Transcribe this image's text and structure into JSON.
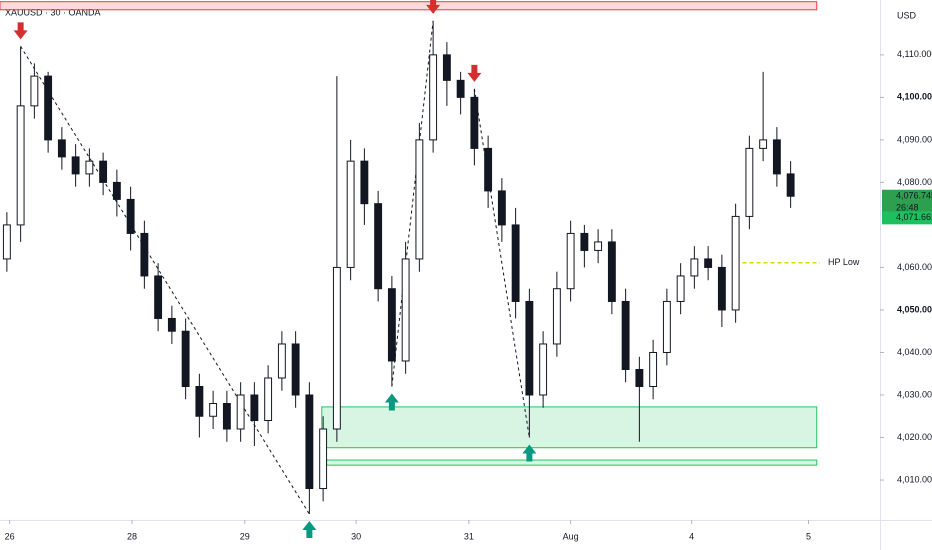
{
  "chart_data": {
    "type": "candlestick",
    "title": "XAUUSD · 30 · OANDA",
    "currency": "USD",
    "xlim": [
      -0.5,
      63.5
    ],
    "ylim": [
      4000.6,
      4122.9
    ],
    "xticks": [
      {
        "value": 0.2,
        "label": "26"
      },
      {
        "value": 9.1,
        "label": "28"
      },
      {
        "value": 17.3,
        "label": "29"
      },
      {
        "value": 25.4,
        "label": "30"
      },
      {
        "value": 33.6,
        "label": "31"
      },
      {
        "value": 41,
        "label": "Aug"
      },
      {
        "value": 49.8,
        "label": "4"
      },
      {
        "value": 58.3,
        "label": "5"
      }
    ],
    "yticks": [
      {
        "value": 4010,
        "label": "4,010.000"
      },
      {
        "value": 4020,
        "label": "4,020.000"
      },
      {
        "value": 4030,
        "label": "4,030.000"
      },
      {
        "value": 4040,
        "label": "4,040.000"
      },
      {
        "value": 4050,
        "label": "4,050.000",
        "bold": true
      },
      {
        "value": 4060,
        "label": "4,060.000"
      },
      {
        "value": 4080,
        "label": "4,080.000"
      },
      {
        "value": 4090,
        "label": "4,090.000"
      },
      {
        "value": 4100,
        "label": "4,100.000",
        "bold": true
      },
      {
        "value": 4110,
        "label": "4,110.000"
      }
    ],
    "up_color": "#ffffff",
    "down_color": "#131722",
    "open": [
      4062,
      4070,
      4098,
      4105,
      4090,
      4086,
      4082,
      4085,
      4080,
      4076,
      4068,
      4058,
      4048,
      4045,
      4032,
      4025,
      4028,
      4022,
      4030,
      4024,
      4034,
      4042,
      4030,
      4008,
      4022,
      4060,
      4085,
      4075,
      4055,
      4038,
      4062,
      4090,
      4110,
      4104,
      4100,
      4088,
      4078,
      4070,
      4052,
      4030,
      4042,
      4055,
      4068,
      4064,
      4066,
      4052,
      4036,
      4032,
      4040,
      4052,
      4058,
      4062,
      4060,
      4050,
      4072,
      4088,
      4090,
      4082
    ],
    "high": [
      4073,
      4112,
      4108,
      4106,
      4093,
      4089,
      4088,
      4087,
      4083,
      4079,
      4071,
      4061,
      4051,
      4048,
      4035,
      4031,
      4031,
      4033,
      4033,
      4037,
      4045,
      4045,
      4033,
      4025,
      4105,
      4090,
      4088,
      4078,
      4058,
      4066,
      4094,
      4118,
      4113,
      4106,
      4102,
      4091,
      4081,
      4074,
      4055,
      4045,
      4059,
      4071,
      4070,
      4069,
      4069,
      4055,
      4039,
      4043,
      4055,
      4061,
      4065,
      4065,
      4063,
      4075,
      4091,
      4106,
      4093,
      4085
    ],
    "low": [
      4059,
      4066,
      4095,
      4087,
      4083,
      4079,
      4079,
      4077,
      4072,
      4064,
      4055,
      4045,
      4042,
      4029,
      4020,
      4022,
      4019,
      4019,
      4018,
      4021,
      4031,
      4027,
      4002,
      4005,
      4019,
      4057,
      4070,
      4052,
      4032,
      4035,
      4059,
      4087,
      4098,
      4096,
      4084,
      4074,
      4066,
      4048,
      4020,
      4027,
      4039,
      4052,
      4060,
      4061,
      4049,
      4033,
      4019,
      4029,
      4037,
      4049,
      4055,
      4057,
      4046,
      4047,
      4069,
      4085,
      4079,
      4074
    ],
    "close": [
      4070,
      4098,
      4105,
      4090,
      4086,
      4082,
      4085,
      4080,
      4076,
      4068,
      4058,
      4048,
      4045,
      4032,
      4025,
      4028,
      4022,
      4030,
      4024,
      4034,
      4042,
      4030,
      4008,
      4022,
      4060,
      4085,
      4075,
      4055,
      4038,
      4062,
      4090,
      4110,
      4104,
      4100,
      4088,
      4078,
      4070,
      4052,
      4030,
      4042,
      4055,
      4068,
      4064,
      4066,
      4052,
      4036,
      4032,
      4040,
      4052,
      4058,
      4062,
      4060,
      4050,
      4072,
      4088,
      4090,
      4082,
      4076.745
    ],
    "sell_signals": [
      1,
      31,
      34
    ],
    "buy_signals": [
      22,
      28,
      38
    ],
    "zigzag": [
      [
        1,
        22
      ],
      [
        28,
        31
      ],
      [
        34,
        38
      ]
    ],
    "zones": [
      {
        "top": 4122.5,
        "bottom": 4120.6,
        "from": -0.5,
        "to": 58.9,
        "color": "#f23645"
      },
      {
        "top": 4027.2,
        "bottom": 4017.6,
        "from": 22.9,
        "to": 58.9,
        "color": "#22c55e"
      },
      {
        "top": 4014.7,
        "bottom": 4013.5,
        "from": 22.9,
        "to": 58.9,
        "color": "#22c55e"
      }
    ],
    "hp_low": {
      "label": "HP Low",
      "value": 4061.1,
      "from": 53.5,
      "color": "#e5d400"
    },
    "price_tags": [
      {
        "value": 4076.745,
        "label": "4,076.745",
        "sub": "26:48",
        "color": "#2e9e4f"
      },
      {
        "value": 4071.661,
        "label": "4,071.661",
        "color": "#1fbf5f"
      }
    ]
  }
}
